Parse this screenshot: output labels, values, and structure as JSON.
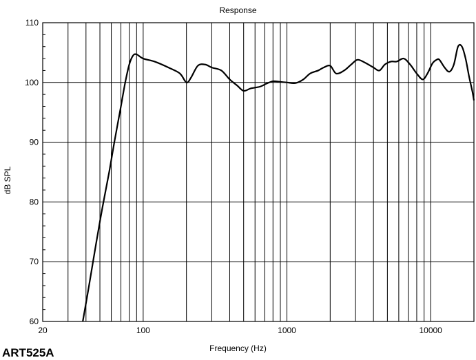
{
  "chart_data": {
    "type": "line",
    "title": "Response",
    "xlabel": "Frequency (Hz)",
    "ylabel": "dB SPL",
    "x_scale": "log",
    "xlim": [
      20,
      20000
    ],
    "ylim": [
      60,
      110
    ],
    "x_ticks": [
      20,
      100,
      1000,
      10000
    ],
    "x_tick_labels": [
      "20",
      "100",
      "1000",
      "10000"
    ],
    "y_ticks": [
      60,
      70,
      80,
      90,
      100,
      110
    ],
    "y_tick_labels": [
      "60",
      "70",
      "80",
      "90",
      "100",
      "110"
    ],
    "grid": true,
    "series": [
      {
        "color": "#000000",
        "x": [
          38,
          42,
          47,
          52,
          58,
          63,
          70,
          75,
          80,
          85,
          90,
          100,
          120,
          150,
          180,
          200,
          215,
          240,
          270,
          300,
          350,
          400,
          450,
          500,
          560,
          650,
          720,
          800,
          900,
          1000,
          1150,
          1300,
          1450,
          1650,
          1800,
          2000,
          2200,
          2500,
          2800,
          3100,
          3500,
          4000,
          4400,
          4800,
          5300,
          5800,
          6500,
          7200,
          8000,
          8800,
          9500,
          10300,
          11000,
          11500,
          12500,
          13500,
          14500,
          15500,
          16500,
          17500,
          18500,
          19500,
          20000
        ],
        "y": [
          60,
          66,
          73,
          79,
          85,
          90,
          96,
          100,
          103,
          104.5,
          104.7,
          104,
          103.5,
          102.5,
          101.5,
          100,
          100.8,
          102.8,
          103,
          102.5,
          102,
          100.5,
          99.5,
          98.6,
          99,
          99.3,
          99.8,
          100.2,
          100.1,
          100,
          99.9,
          100.5,
          101.5,
          102,
          102.5,
          102.8,
          101.5,
          102,
          103,
          103.8,
          103.3,
          102.5,
          102,
          103,
          103.5,
          103.5,
          104,
          103,
          101.5,
          100.5,
          101.5,
          103.2,
          103.8,
          103.8,
          102.5,
          101.8,
          103,
          106,
          106,
          104,
          101,
          98.5,
          97
        ]
      }
    ]
  },
  "label": {
    "model": "ART525A"
  }
}
